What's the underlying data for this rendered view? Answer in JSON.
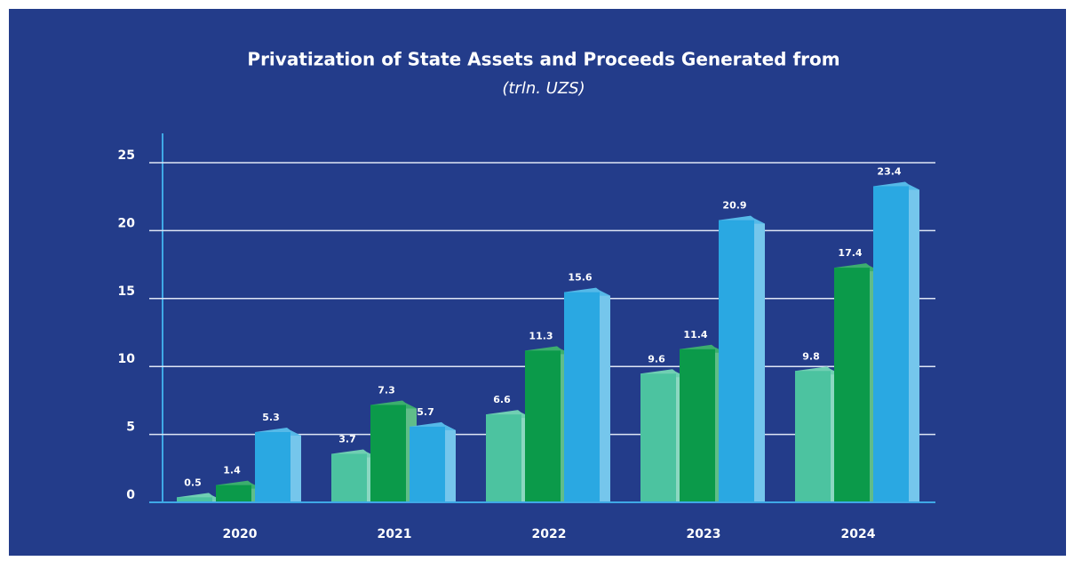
{
  "chart_data": {
    "type": "bar",
    "title": "Privatization of State Assets and Proceeds Generated from",
    "subtitle": "(trln. UZS)",
    "categories": [
      "2020",
      "2021",
      "2022",
      "2023",
      "2024"
    ],
    "series": [
      {
        "color": "#4cc3a0",
        "values": [
          0.5,
          3.7,
          6.6,
          9.6,
          9.8
        ]
      },
      {
        "color": "#0b9a4a",
        "values": [
          1.4,
          7.3,
          11.3,
          11.4,
          17.4
        ]
      },
      {
        "color": "#2aa8e2",
        "values": [
          5.3,
          5.7,
          15.6,
          20.9,
          23.4
        ]
      }
    ],
    "ylim": [
      0,
      25
    ],
    "yticks": [
      0,
      5,
      10,
      15,
      20,
      25
    ],
    "grid": true
  }
}
